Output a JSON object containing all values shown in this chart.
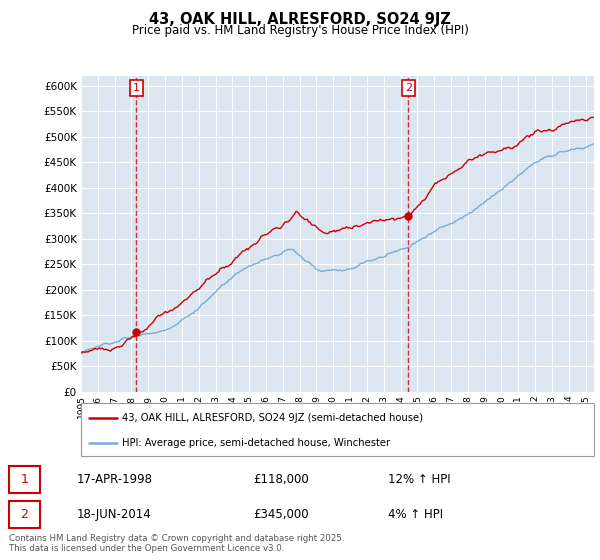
{
  "title": "43, OAK HILL, ALRESFORD, SO24 9JZ",
  "subtitle": "Price paid vs. HM Land Registry's House Price Index (HPI)",
  "ylim": [
    0,
    620000
  ],
  "yticks": [
    0,
    50000,
    100000,
    150000,
    200000,
    250000,
    300000,
    350000,
    400000,
    450000,
    500000,
    550000,
    600000
  ],
  "background_color": "#ffffff",
  "plot_bg_color": "#dce6f1",
  "grid_color": "#ffffff",
  "sale1_date": 1998.29,
  "sale1_price": 118000,
  "sale2_date": 2014.46,
  "sale2_price": 345000,
  "red_line_color": "#cc0000",
  "blue_line_color": "#7aadd4",
  "vline_color": "#cc0000",
  "marker_color": "#cc0000",
  "legend_label_red": "43, OAK HILL, ALRESFORD, SO24 9JZ (semi-detached house)",
  "legend_label_blue": "HPI: Average price, semi-detached house, Winchester",
  "annotation1_date": "17-APR-1998",
  "annotation1_price": "£118,000",
  "annotation1_hpi": "12% ↑ HPI",
  "annotation2_date": "18-JUN-2014",
  "annotation2_price": "£345,000",
  "annotation2_hpi": "4% ↑ HPI",
  "footer": "Contains HM Land Registry data © Crown copyright and database right 2025.\nThis data is licensed under the Open Government Licence v3.0.",
  "xmin": 1995.0,
  "xmax": 2025.5
}
